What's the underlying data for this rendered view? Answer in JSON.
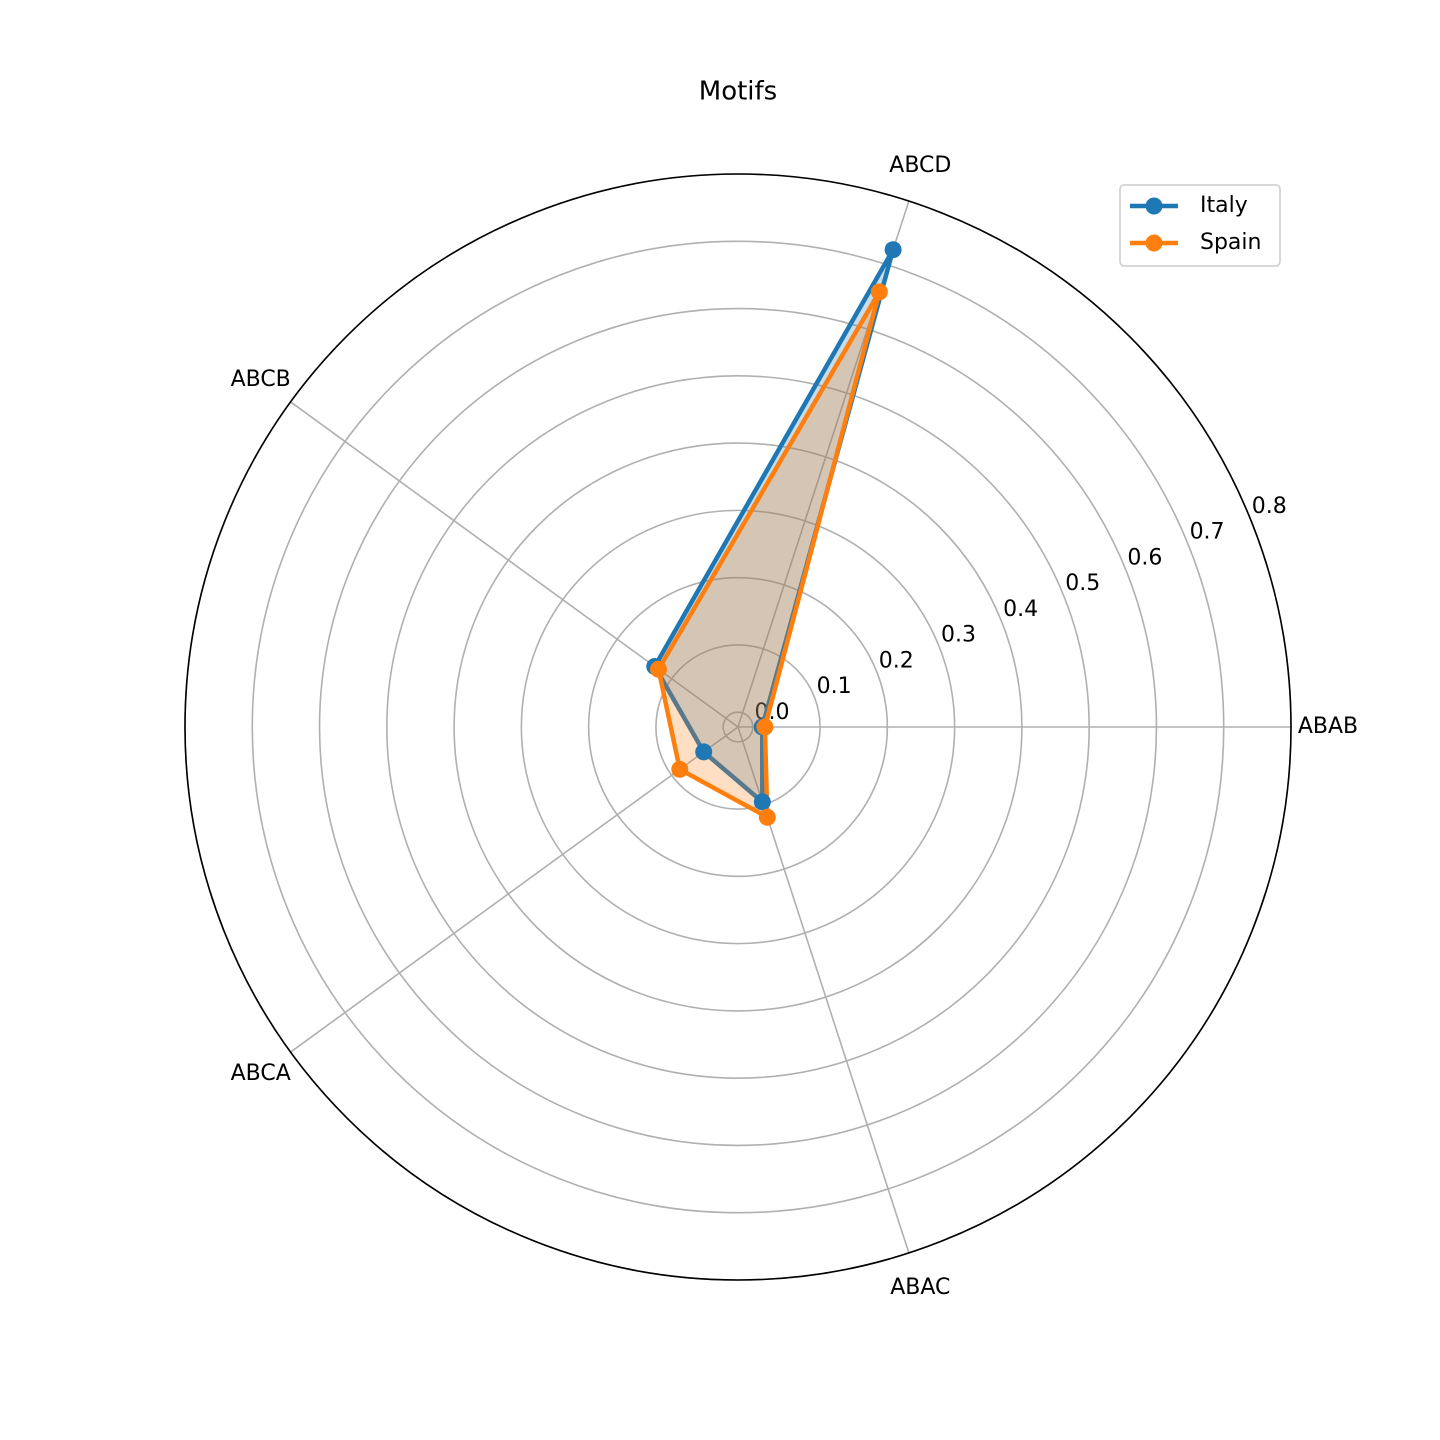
{
  "chart_data": {
    "type": "radar",
    "title": "Motifs",
    "categories": [
      "ABAB",
      "ABCD",
      "ABCB",
      "ABCA",
      "ABAC"
    ],
    "series": [
      {
        "name": "Italy",
        "color": "#1f77b4",
        "values": [
          0.014,
          0.724,
          0.131,
          0.041,
          0.095
        ]
      },
      {
        "name": "Spain",
        "color": "#ff7f0e",
        "values": [
          0.018,
          0.658,
          0.124,
          0.085,
          0.119
        ]
      }
    ],
    "ylim": [
      -0.022,
      0.8
    ],
    "yticks": [
      {
        "value": 0,
        "label": "0.0"
      },
      0.1,
      0.2,
      0.3,
      0.4,
      0.5,
      0.6,
      0.7,
      0.8
    ],
    "grid": true,
    "legend": "upper right"
  }
}
